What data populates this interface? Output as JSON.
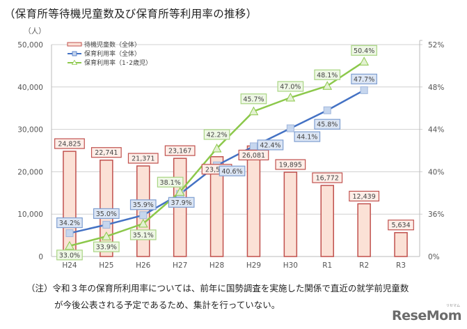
{
  "title": "（保育所等待機児童数及び保育所等利用率の推移）",
  "note": {
    "line1": "（注）令和３年の保育所利用率については、前年に国勢調査を実施した関係で直近の就学前児童数",
    "line2": "が今後公表される予定であるため、集計を行っていない。"
  },
  "logo": {
    "text": "ReseMom",
    "ruby": "リセマム"
  },
  "colors": {
    "bar_fill": "#fbe1d6",
    "bar_stroke": "#c0504d",
    "blue": "#4472c4",
    "blue_marker": "#c6d6ee",
    "green": "#8cc84b",
    "green_marker": "#e3f1d2",
    "grid": "#d0d0d0"
  },
  "chart_data": {
    "type": "bar",
    "title": "（保育所等待機児童数及び保育所等利用率の推移）",
    "categories": [
      "H24",
      "H25",
      "H26",
      "H27",
      "H28",
      "H29",
      "H30",
      "R1",
      "R2",
      "R3"
    ],
    "left_axis": {
      "unit_label": "（人）",
      "ticks": [
        "0",
        "10,000",
        "20,000",
        "30,000",
        "40,000",
        "50,000"
      ],
      "ylim": [
        0,
        50000
      ]
    },
    "right_axis": {
      "ticks": [
        "0%",
        "36%",
        "40%",
        "44%",
        "48%",
        "52%"
      ],
      "ylim": [
        32,
        52
      ],
      "broken": true
    },
    "grid": true,
    "legend_position": "top-left",
    "series": [
      {
        "name": "待機児童数（全体）",
        "type": "bar",
        "axis": "left",
        "values": [
          24825,
          22741,
          21371,
          23167,
          23553,
          26081,
          19895,
          16772,
          12439,
          5634
        ],
        "labels": [
          "24,825",
          "22,741",
          "21,371",
          "23,167",
          "23,553",
          "26,081",
          "19,895",
          "16,772",
          "12,439",
          "5,634"
        ]
      },
      {
        "name": "保育利用率（全体）",
        "type": "line",
        "axis": "right",
        "marker": "square",
        "values": [
          34.2,
          35.0,
          35.9,
          37.9,
          40.6,
          42.4,
          44.1,
          45.8,
          47.7,
          null
        ],
        "labels": [
          "34.2%",
          "35.0%",
          "35.9%",
          "37.9%",
          "40.6%",
          "42.4%",
          "44.1%",
          "45.8%",
          "47.7%",
          null
        ]
      },
      {
        "name": "保育利用率（1･2歳児）",
        "type": "line",
        "axis": "right",
        "marker": "triangle",
        "values": [
          33.0,
          33.9,
          35.1,
          38.1,
          42.2,
          45.7,
          47.0,
          48.1,
          50.4,
          null
        ],
        "labels": [
          "33.0%",
          "33.9%",
          "35.1%",
          "38.1%",
          "42.2%",
          "45.7%",
          "47.0%",
          "48.1%",
          "50.4%",
          null
        ]
      }
    ]
  }
}
